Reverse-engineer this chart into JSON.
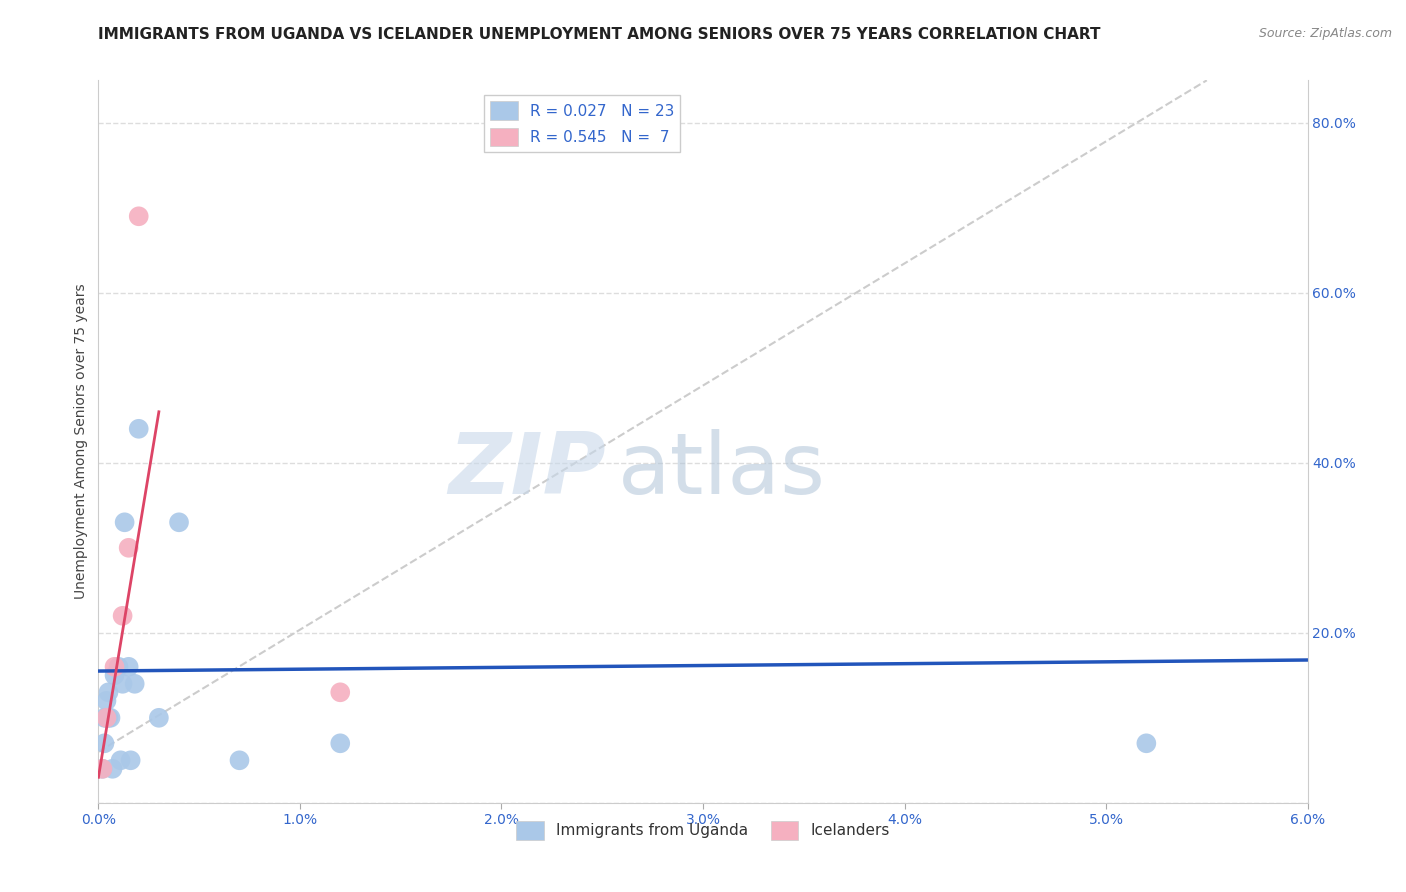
{
  "title": "IMMIGRANTS FROM UGANDA VS ICELANDER UNEMPLOYMENT AMONG SENIORS OVER 75 YEARS CORRELATION CHART",
  "source": "Source: ZipAtlas.com",
  "xlabel": "",
  "ylabel": "Unemployment Among Seniors over 75 years",
  "xlim": [
    0.0,
    0.06
  ],
  "ylim": [
    0.0,
    0.85
  ],
  "xticks": [
    0.0,
    0.01,
    0.02,
    0.03,
    0.04,
    0.05,
    0.06
  ],
  "xticklabels": [
    "0.0%",
    "1.0%",
    "2.0%",
    "3.0%",
    "4.0%",
    "5.0%",
    "6.0%"
  ],
  "yticks_right": [
    0.0,
    0.2,
    0.4,
    0.6,
    0.8
  ],
  "yticklabels_right": [
    "",
    "20.0%",
    "40.0%",
    "60.0%",
    "80.0%"
  ],
  "watermark_zip": "ZIP",
  "watermark_atlas": "atlas",
  "blue_scatter_x": [
    0.0002,
    0.0003,
    0.0003,
    0.0004,
    0.0004,
    0.0005,
    0.0005,
    0.0006,
    0.0007,
    0.0008,
    0.001,
    0.0011,
    0.0012,
    0.0013,
    0.0015,
    0.0016,
    0.0018,
    0.002,
    0.003,
    0.004,
    0.007,
    0.012,
    0.052
  ],
  "blue_scatter_y": [
    0.04,
    0.07,
    0.1,
    0.1,
    0.12,
    0.1,
    0.13,
    0.1,
    0.04,
    0.15,
    0.16,
    0.05,
    0.14,
    0.33,
    0.16,
    0.05,
    0.14,
    0.44,
    0.1,
    0.33,
    0.05,
    0.07,
    0.07
  ],
  "pink_scatter_x": [
    0.0002,
    0.0004,
    0.0008,
    0.0012,
    0.0015,
    0.002,
    0.012
  ],
  "pink_scatter_y": [
    0.04,
    0.1,
    0.16,
    0.22,
    0.3,
    0.69,
    0.13
  ],
  "blue_line_x": [
    0.0,
    0.06
  ],
  "blue_line_y": [
    0.155,
    0.168
  ],
  "pink_line_x": [
    0.0,
    0.003
  ],
  "pink_line_y": [
    0.03,
    0.46
  ],
  "diagonal_line_x": [
    0.0,
    0.055
  ],
  "diagonal_line_y": [
    0.06,
    0.85
  ],
  "blue_scatter_color": "#aac8e8",
  "pink_scatter_color": "#f5b0c0",
  "blue_line_color": "#2255bb",
  "pink_line_color": "#dd4466",
  "diagonal_line_color": "#cccccc",
  "background_color": "#ffffff",
  "grid_color": "#dddddd",
  "title_fontsize": 11,
  "axis_label_fontsize": 10,
  "tick_fontsize": 10,
  "legend_entries": [
    {
      "label": "R = 0.027   N = 23",
      "color": "#aac8e8"
    },
    {
      "label": "R = 0.545   N =  7",
      "color": "#f5b0c0"
    }
  ]
}
